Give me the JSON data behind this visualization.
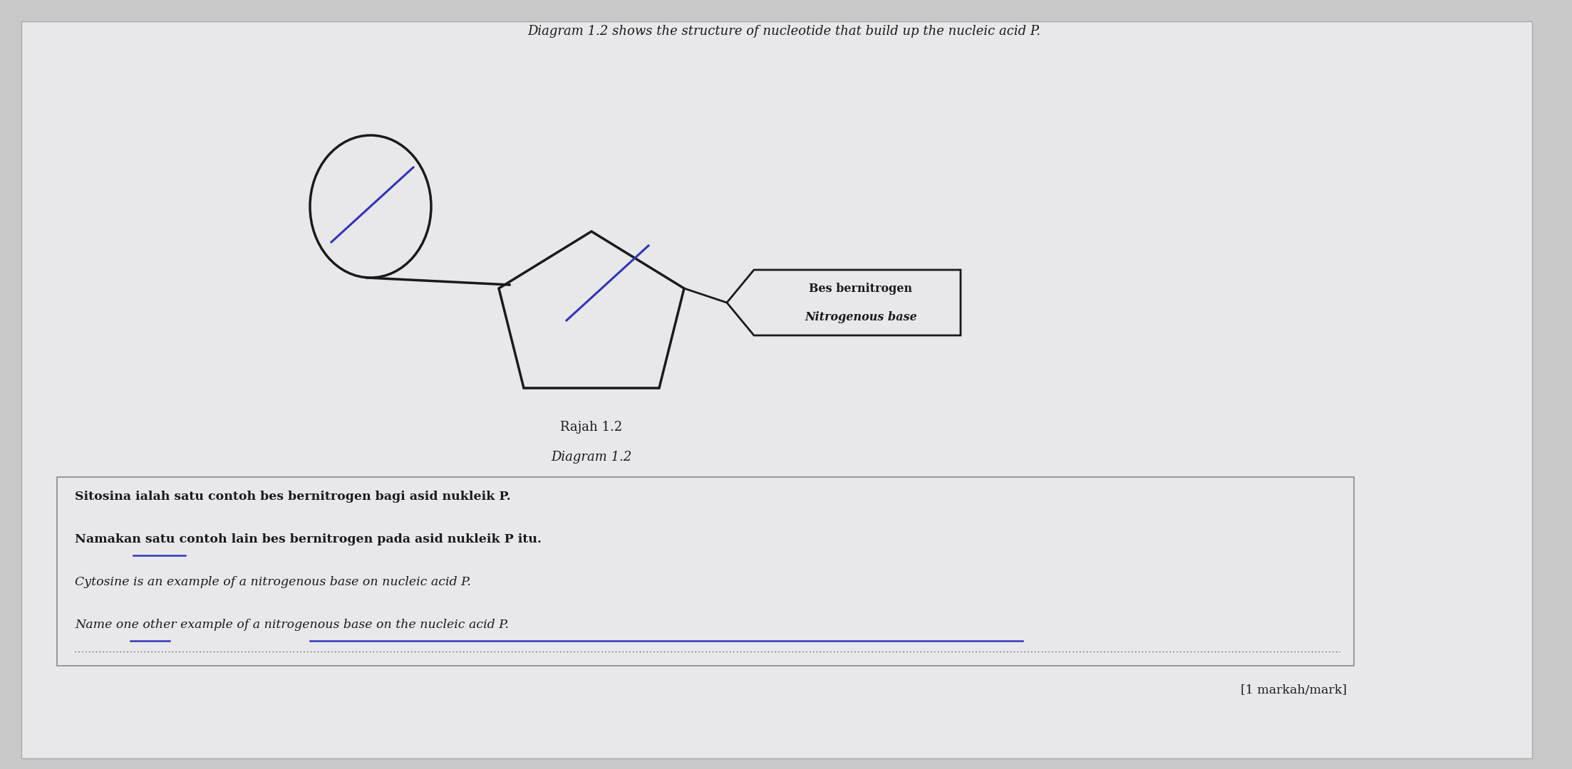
{
  "bg_color": "#c8c8c8",
  "paper_color": "#e8e8ea",
  "title_text": "Diagram 1.2 shows the structure of nucleotide that build up the nucleic acid P.",
  "caption_line1": "Rajah 1.2",
  "caption_line2": "Diagram 1.2",
  "label_line1": "Bes bernitrogen",
  "label_line2": "Nitrogenous base",
  "question_line1": "Sitosina ialah satu contoh bes bernitrogen bagi asid nukleik P.",
  "question_line2": "Namakan satu contoh lain bes bernitrogen pada asid nukleik P itu.",
  "question_line3": "Cytosine is an example of a nitrogenous base on nucleic acid P.",
  "question_line4": "Name one other example of a nitrogenous base on the nucleic acid P.",
  "mark_text": "[1 markah/mark]",
  "shape_color": "#1a1a1a",
  "blue_color": "#3333bb",
  "underline_color": "#3333bb",
  "text_color": "#1a1a1a"
}
